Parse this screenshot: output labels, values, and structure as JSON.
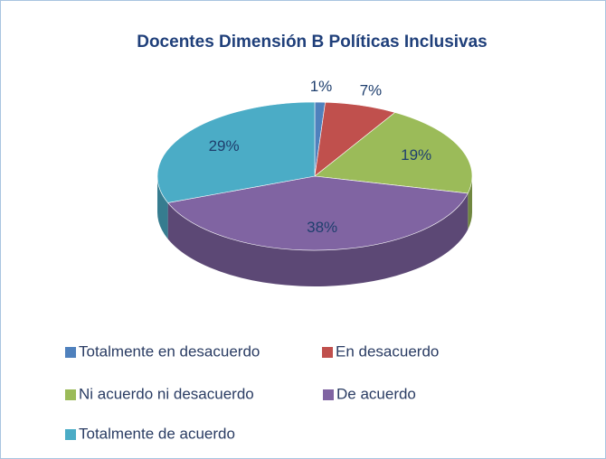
{
  "chart_data": {
    "type": "pie",
    "title": "Docentes Dimensión B Políticas Inclusivas",
    "categories": [
      "Totalmente en desacuerdo",
      "En desacuerdo",
      "Ni acuerdo ni desacuerdo",
      "De acuerdo",
      "Totalmente de acuerdo"
    ],
    "values": [
      1,
      7,
      19,
      38,
      29
    ],
    "value_labels": [
      "1%",
      "7%",
      "19%",
      "38%",
      "29%"
    ],
    "colors": [
      "#4f81bd",
      "#c0504d",
      "#9bbb59",
      "#8064a2",
      "#4bacc6"
    ],
    "legend": "bottom"
  }
}
